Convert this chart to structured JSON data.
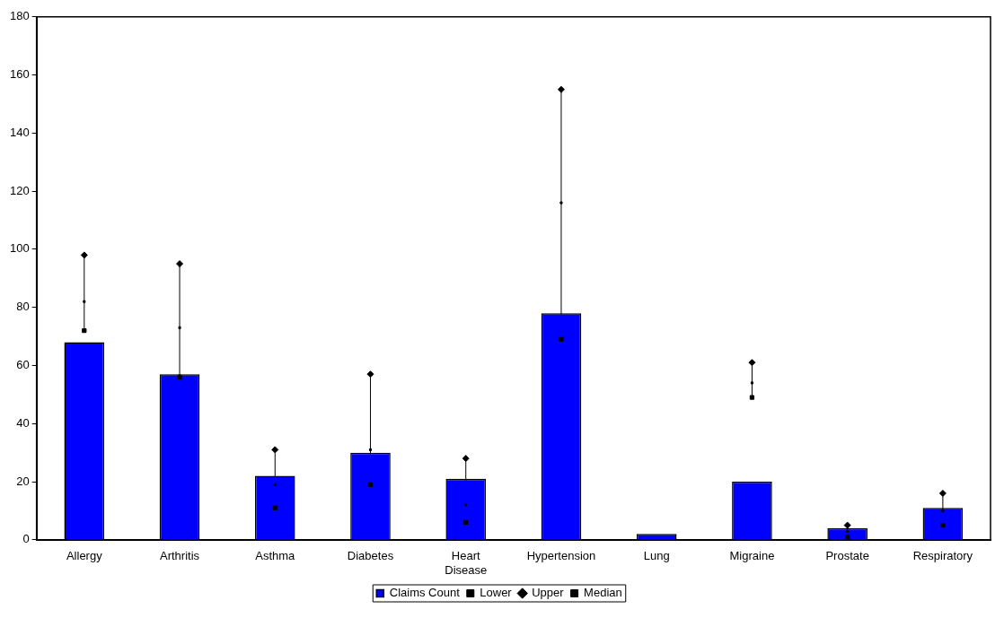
{
  "chart_data": {
    "type": "bar",
    "categories": [
      "Allergy",
      "Arthritis",
      "Asthma",
      "Diabetes",
      "Heart Disease",
      "Hypertension",
      "Lung",
      "Migraine",
      "Prostate",
      "Respiratory"
    ],
    "series": [
      {
        "name": "Claims Count",
        "color": "#0000ff",
        "values": [
          68,
          57,
          22,
          30,
          21,
          78,
          2,
          20,
          4,
          11
        ]
      },
      {
        "name": "Lower",
        "type": "scatter",
        "marker": "square",
        "color": "#000000",
        "values": [
          72,
          56,
          11,
          19,
          6,
          69,
          null,
          49,
          1,
          5
        ]
      },
      {
        "name": "Upper",
        "type": "scatter",
        "marker": "diamond",
        "color": "#000000",
        "values": [
          98,
          95,
          31,
          57,
          28,
          155,
          null,
          61,
          5,
          16
        ]
      },
      {
        "name": "Median",
        "type": "scatter",
        "marker": "square",
        "color": "#000000",
        "values": [
          82,
          73,
          19,
          31,
          12,
          116,
          null,
          54,
          3,
          10
        ]
      }
    ],
    "ylim": [
      0,
      180
    ],
    "yticks": [
      0,
      20,
      40,
      60,
      80,
      100,
      120,
      140,
      160,
      180
    ],
    "grid": false,
    "legend": "bottom"
  }
}
